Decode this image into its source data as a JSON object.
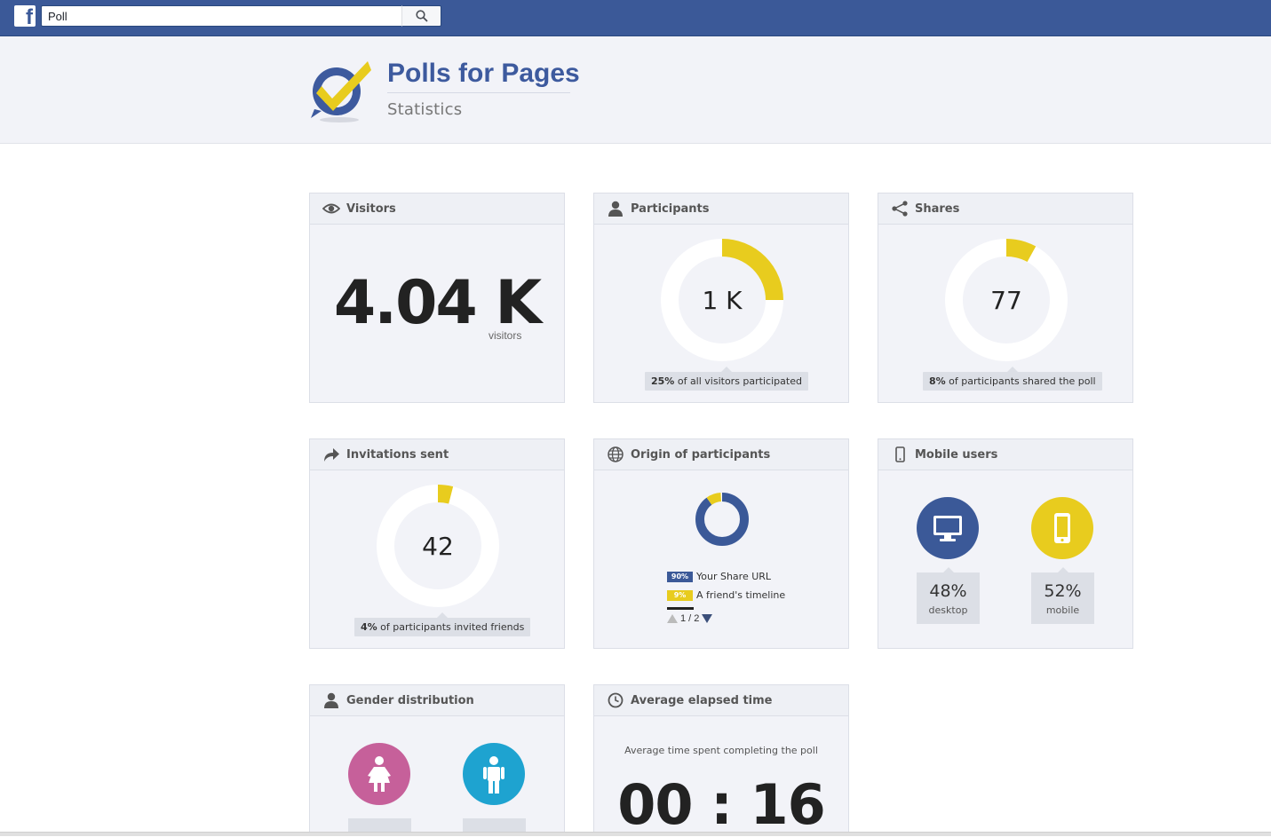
{
  "fb": {
    "search_value": "Poll",
    "logo_glyph": "f"
  },
  "header": {
    "title": "Polls for Pages",
    "subtitle": "Statistics"
  },
  "colors": {
    "blue": "#3b5998",
    "yellow": "#e8cc1e",
    "female": "#c6609a",
    "male": "#1ea3d0"
  },
  "cards": {
    "visitors": {
      "label": "Visitors",
      "value": "4.04 K",
      "unit": "visitors",
      "icon": "eye-icon"
    },
    "participants": {
      "label": "Participants",
      "value": "1 K",
      "percent": 25,
      "pill_pct": "25%",
      "pill_text": " of all visitors participated",
      "icon": "user-icon"
    },
    "shares": {
      "label": "Shares",
      "value": "77",
      "percent": 8,
      "pill_pct": "8%",
      "pill_text": " of participants shared the poll",
      "icon": "share-icon"
    },
    "invitations": {
      "label": "Invitations sent",
      "value": "42",
      "percent": 4,
      "pill_pct": "4%",
      "pill_text": " of participants invited friends",
      "icon": "forward-arrow-icon"
    },
    "origin": {
      "label": "Origin of participants",
      "icon": "globe-icon",
      "items": [
        {
          "tag": "90%",
          "text": "Your Share URL",
          "percent": 90,
          "color": "#3b5998"
        },
        {
          "tag": "9%",
          "text": "A friend's timeline",
          "percent": 9,
          "color": "#e8cc1e"
        }
      ],
      "pager": "1 / 2"
    },
    "mobile": {
      "label": "Mobile users",
      "icon": "mobile-phone-icon",
      "desktop_value": "48%",
      "desktop_label": "desktop",
      "mobile_value": "52%",
      "mobile_label": "mobile"
    },
    "gender": {
      "label": "Gender distribution",
      "icon": "person-icon"
    },
    "elapsed": {
      "label": "Average elapsed time",
      "icon": "clock-icon",
      "caption": "Average time spent completing the poll",
      "value": "00 : 16"
    }
  }
}
